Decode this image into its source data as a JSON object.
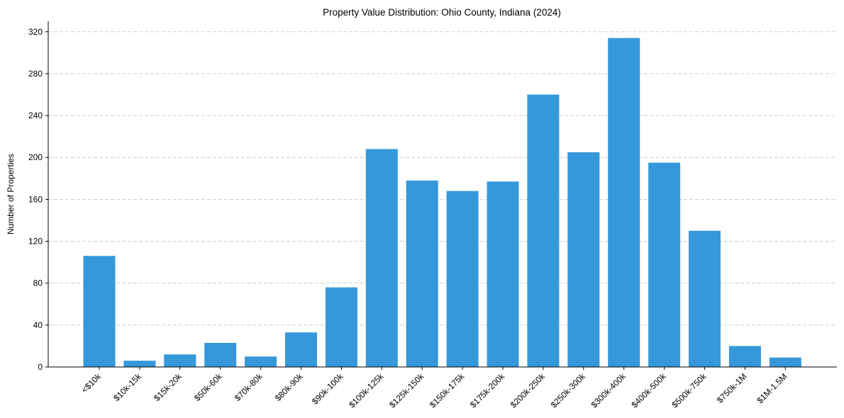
{
  "chart_data": {
    "type": "bar",
    "title": "Property Value Distribution: Ohio County, Indiana (2024)",
    "xlabel": "",
    "ylabel": "Number of Properties",
    "ylim": [
      0,
      330
    ],
    "yticks": [
      0,
      40,
      80,
      120,
      160,
      200,
      240,
      280,
      320
    ],
    "grid": "horizontal dashed",
    "bar_color": "#3498db",
    "categories": [
      "<$10k",
      "$10k-15k",
      "$15k-20k",
      "$50k-60k",
      "$70k-80k",
      "$80k-90k",
      "$90k-100k",
      "$100k-125k",
      "$125k-150k",
      "$150k-175k",
      "$175k-200k",
      "$200k-250k",
      "$250k-300k",
      "$300k-400k",
      "$400k-500k",
      "$500k-750k",
      "$750k-1M",
      "$1M-1.5M"
    ],
    "values": [
      106,
      6,
      12,
      23,
      10,
      33,
      76,
      208,
      178,
      168,
      177,
      260,
      205,
      314,
      195,
      130,
      20,
      9
    ]
  }
}
